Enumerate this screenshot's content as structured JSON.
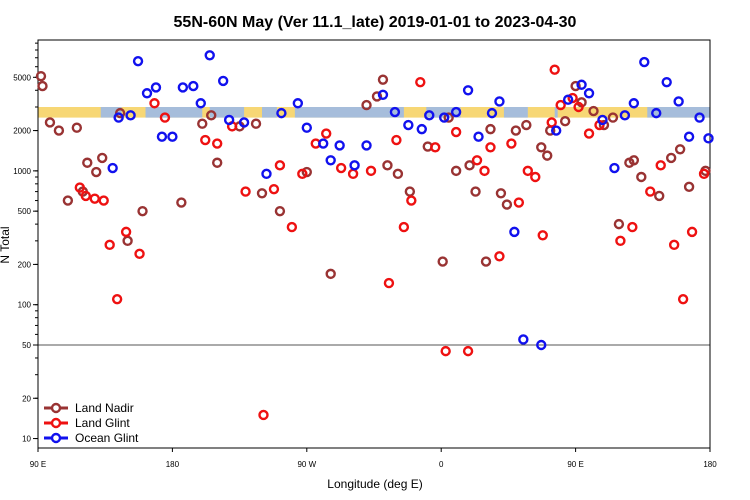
{
  "chart_data": {
    "type": "scatter",
    "title": "55N-60N May (Ver 11.1_late)   2019-01-01 to 2023-04-30",
    "xlabel": "Longitude (deg E)",
    "ylabel": "N Total",
    "xscale": "linear",
    "yscale": "log",
    "xlim": [
      90,
      540
    ],
    "ylim": [
      8.5,
      9500
    ],
    "x_ticks": [
      {
        "value": 90,
        "label": "90 E"
      },
      {
        "value": 180,
        "label": "180"
      },
      {
        "value": 270,
        "label": "90 W"
      },
      {
        "value": 360,
        "label": "0"
      },
      {
        "value": 450,
        "label": "90 E"
      },
      {
        "value": 540,
        "label": "180"
      }
    ],
    "y_ticks": [
      {
        "value": 10,
        "label": "10"
      },
      {
        "value": 20,
        "label": "20"
      },
      {
        "value": 50,
        "label": "50"
      },
      {
        "value": 100,
        "label": "100"
      },
      {
        "value": 200,
        "label": "200"
      },
      {
        "value": 500,
        "label": "500"
      },
      {
        "value": 1000,
        "label": "1000"
      },
      {
        "value": 2000,
        "label": "2000"
      },
      {
        "value": 5000,
        "label": "5000"
      }
    ],
    "reference_line": {
      "y": 50,
      "color": "#555555"
    },
    "latitude_band": {
      "y_low": 2500,
      "y_high": 3000,
      "land_color": "#f7d775",
      "ocean_color": "#a6bddb"
    },
    "legend_position": "bottom-left",
    "series": [
      {
        "name": "Land Nadir",
        "color": "#993333",
        "points": [
          [
            92,
            5100
          ],
          [
            93,
            4300
          ],
          [
            98,
            2300
          ],
          [
            104,
            2000
          ],
          [
            110,
            600
          ],
          [
            116,
            2100
          ],
          [
            120,
            700
          ],
          [
            123,
            1150
          ],
          [
            129,
            980
          ],
          [
            133,
            1250
          ],
          [
            145,
            2700
          ],
          [
            150,
            300
          ],
          [
            160,
            500
          ],
          [
            186,
            580
          ],
          [
            200,
            2250
          ],
          [
            206,
            2600
          ],
          [
            210,
            1150
          ],
          [
            225,
            2150
          ],
          [
            236,
            2250
          ],
          [
            240,
            680
          ],
          [
            252,
            500
          ],
          [
            270,
            980
          ],
          [
            286,
            170
          ],
          [
            310,
            3100
          ],
          [
            317,
            3600
          ],
          [
            321,
            4800
          ],
          [
            324,
            1100
          ],
          [
            331,
            950
          ],
          [
            339,
            700
          ],
          [
            351,
            1520
          ],
          [
            361,
            210
          ],
          [
            365,
            2500
          ],
          [
            370,
            1000
          ],
          [
            379,
            1100
          ],
          [
            383,
            700
          ],
          [
            390,
            210
          ],
          [
            393,
            2050
          ],
          [
            400,
            680
          ],
          [
            404,
            560
          ],
          [
            410,
            2000
          ],
          [
            417,
            2200
          ],
          [
            427,
            1500
          ],
          [
            431,
            1300
          ],
          [
            433,
            2000
          ],
          [
            443,
            2350
          ],
          [
            450,
            4300
          ],
          [
            454,
            3250
          ],
          [
            462,
            2800
          ],
          [
            469,
            2200
          ],
          [
            475,
            2500
          ],
          [
            479,
            400
          ],
          [
            486,
            1150
          ],
          [
            489,
            1200
          ],
          [
            494,
            900
          ],
          [
            506,
            650
          ],
          [
            514,
            1250
          ],
          [
            520,
            1450
          ],
          [
            526,
            760
          ],
          [
            537,
            1000
          ]
        ]
      },
      {
        "name": "Land Glint",
        "color": "#ee1111",
        "points": [
          [
            118,
            750
          ],
          [
            122,
            650
          ],
          [
            128,
            620
          ],
          [
            134,
            600
          ],
          [
            138,
            280
          ],
          [
            143,
            110
          ],
          [
            149,
            350
          ],
          [
            158,
            240
          ],
          [
            168,
            3200
          ],
          [
            175,
            2500
          ],
          [
            202,
            1700
          ],
          [
            210,
            1600
          ],
          [
            220,
            2150
          ],
          [
            229,
            700
          ],
          [
            241,
            15
          ],
          [
            248,
            730
          ],
          [
            252,
            1100
          ],
          [
            260,
            380
          ],
          [
            267,
            950
          ],
          [
            276,
            1600
          ],
          [
            283,
            1900
          ],
          [
            293,
            1050
          ],
          [
            301,
            950
          ],
          [
            313,
            1000
          ],
          [
            325,
            145
          ],
          [
            330,
            1700
          ],
          [
            335,
            380
          ],
          [
            340,
            600
          ],
          [
            346,
            4600
          ],
          [
            356,
            1500
          ],
          [
            363,
            45
          ],
          [
            370,
            1950
          ],
          [
            378,
            45
          ],
          [
            384,
            1200
          ],
          [
            389,
            1000
          ],
          [
            393,
            1500
          ],
          [
            399,
            230
          ],
          [
            407,
            1600
          ],
          [
            412,
            580
          ],
          [
            418,
            1000
          ],
          [
            423,
            900
          ],
          [
            428,
            330
          ],
          [
            434,
            2300
          ],
          [
            436,
            5700
          ],
          [
            440,
            3100
          ],
          [
            448,
            3500
          ],
          [
            452,
            3000
          ],
          [
            459,
            1900
          ],
          [
            466,
            2200
          ],
          [
            480,
            300
          ],
          [
            488,
            380
          ],
          [
            500,
            700
          ],
          [
            507,
            1100
          ],
          [
            516,
            280
          ],
          [
            522,
            110
          ],
          [
            528,
            350
          ],
          [
            536,
            950
          ]
        ]
      },
      {
        "name": "Ocean Glint",
        "color": "#1111ee",
        "points": [
          [
            140,
            1050
          ],
          [
            144,
            2500
          ],
          [
            152,
            2600
          ],
          [
            157,
            6600
          ],
          [
            163,
            3800
          ],
          [
            169,
            4200
          ],
          [
            173,
            1800
          ],
          [
            180,
            1800
          ],
          [
            187,
            4200
          ],
          [
            194,
            4300
          ],
          [
            199,
            3200
          ],
          [
            205,
            7300
          ],
          [
            214,
            4700
          ],
          [
            218,
            2400
          ],
          [
            228,
            2300
          ],
          [
            243,
            950
          ],
          [
            253,
            2700
          ],
          [
            264,
            3200
          ],
          [
            270,
            2100
          ],
          [
            281,
            1600
          ],
          [
            286,
            1200
          ],
          [
            292,
            1550
          ],
          [
            302,
            1100
          ],
          [
            310,
            1550
          ],
          [
            321,
            3700
          ],
          [
            329,
            2750
          ],
          [
            338,
            2200
          ],
          [
            347,
            2050
          ],
          [
            352,
            2600
          ],
          [
            362,
            2500
          ],
          [
            370,
            2750
          ],
          [
            378,
            4000
          ],
          [
            385,
            1800
          ],
          [
            394,
            2700
          ],
          [
            399,
            3300
          ],
          [
            409,
            350
          ],
          [
            415,
            55
          ],
          [
            427,
            50
          ],
          [
            437,
            2000
          ],
          [
            445,
            3400
          ],
          [
            454,
            4400
          ],
          [
            459,
            3800
          ],
          [
            468,
            2400
          ],
          [
            476,
            1050
          ],
          [
            483,
            2600
          ],
          [
            489,
            3200
          ],
          [
            496,
            6500
          ],
          [
            504,
            2700
          ],
          [
            511,
            4600
          ],
          [
            519,
            3300
          ],
          [
            526,
            1800
          ],
          [
            533,
            2500
          ],
          [
            539,
            1750
          ]
        ]
      }
    ]
  }
}
